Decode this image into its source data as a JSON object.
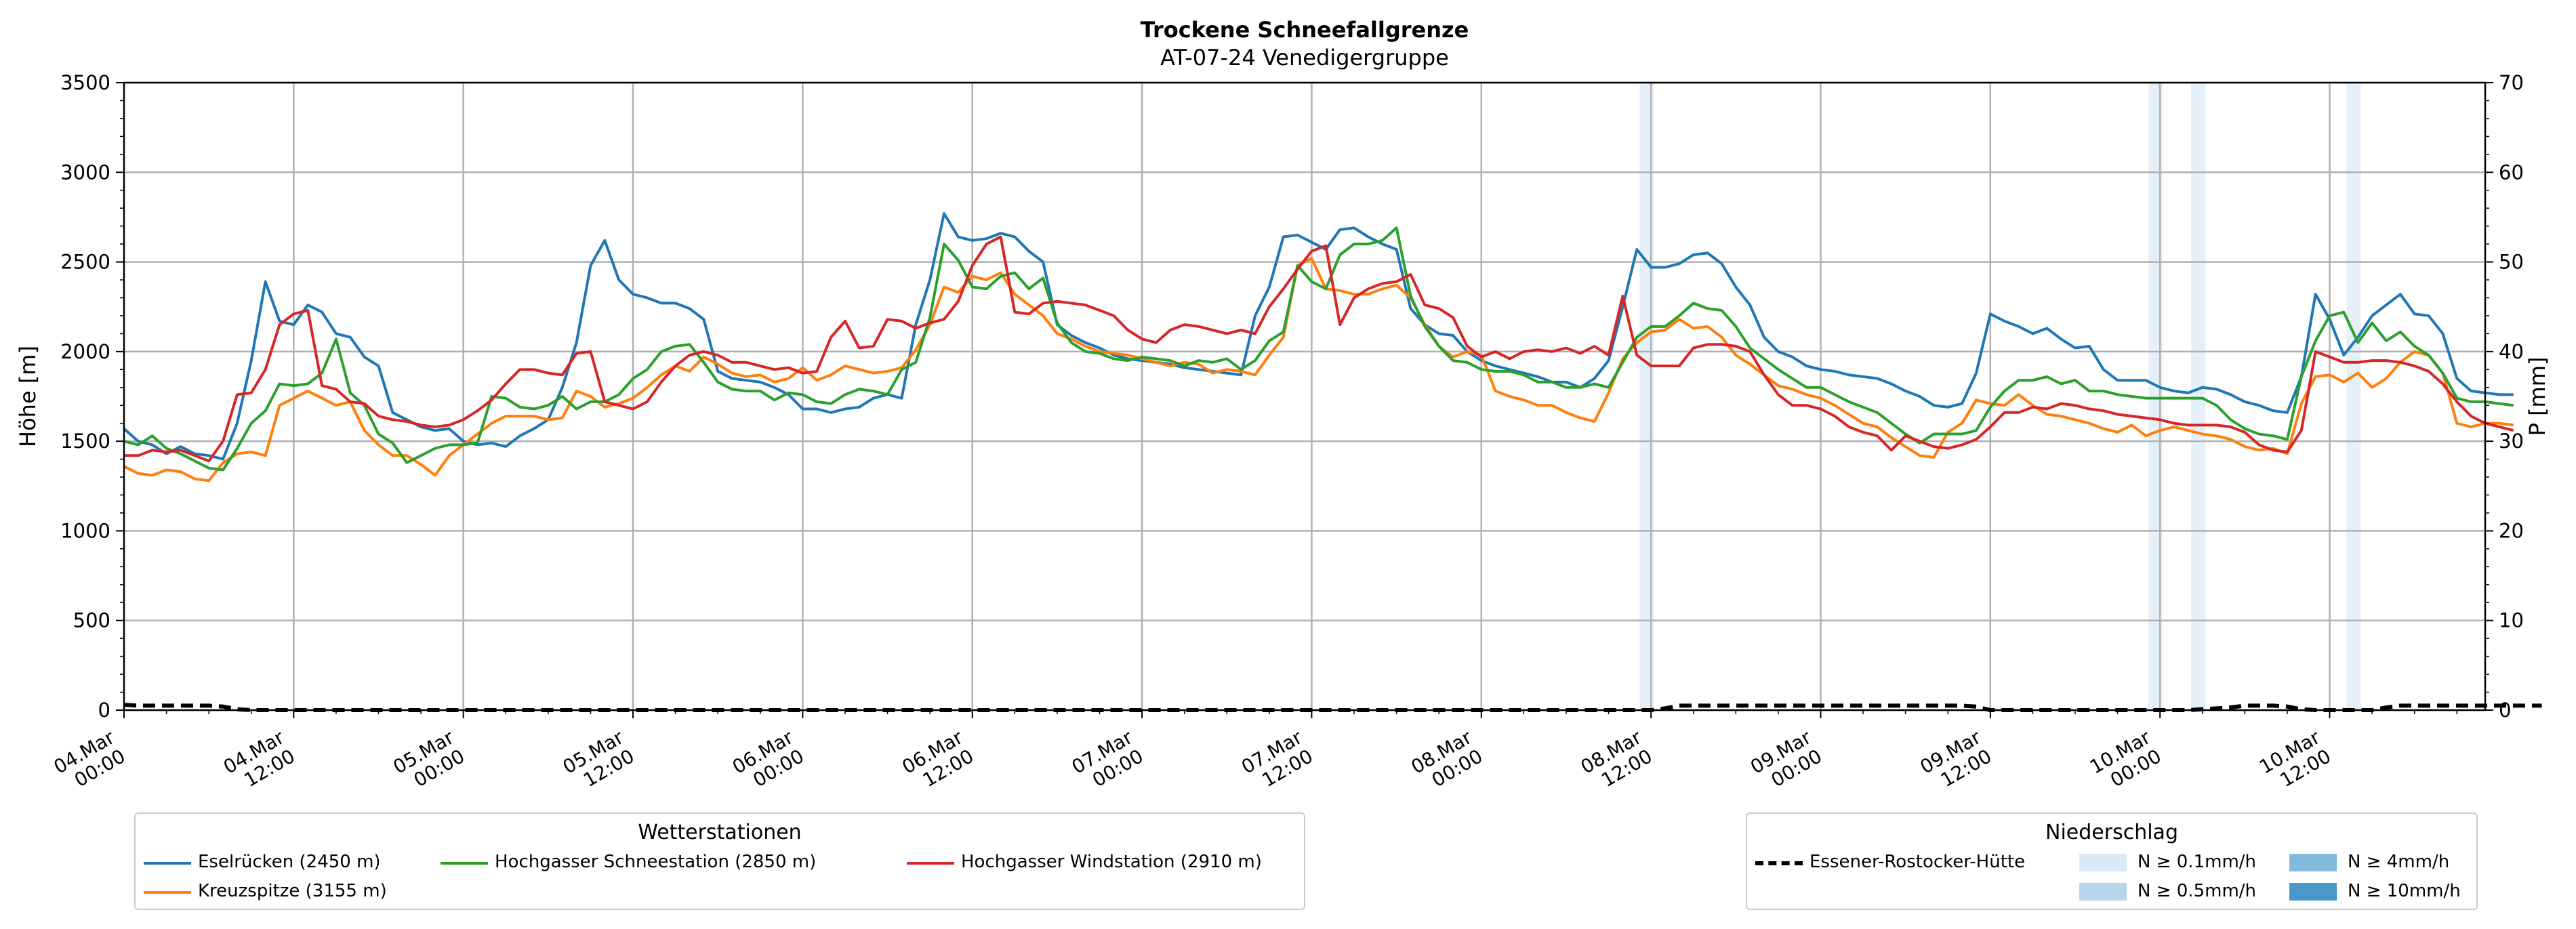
{
  "chart_data": {
    "type": "line",
    "title": "Trockene Schneefallgrenze",
    "subtitle": "AT-07-24 Venedigergruppe",
    "ylabel": "Höhe [m]",
    "ylabel_right": "P [mm]",
    "ylim": [
      0,
      3500
    ],
    "ylim_right": [
      0,
      70
    ],
    "yticks": [
      "0",
      "500",
      "1000",
      "1500",
      "2000",
      "2500",
      "3000",
      "3500"
    ],
    "yticks_right": [
      "0",
      "10",
      "20",
      "30",
      "40",
      "50",
      "60",
      "70"
    ],
    "xticks": [
      [
        "04.Mar",
        "00:00"
      ],
      [
        "04.Mar",
        "12:00"
      ],
      [
        "05.Mar",
        "00:00"
      ],
      [
        "05.Mar",
        "12:00"
      ],
      [
        "06.Mar",
        "00:00"
      ],
      [
        "06.Mar",
        "12:00"
      ],
      [
        "07.Mar",
        "00:00"
      ],
      [
        "07.Mar",
        "12:00"
      ],
      [
        "08.Mar",
        "00:00"
      ],
      [
        "08.Mar",
        "12:00"
      ],
      [
        "09.Mar",
        "00:00"
      ],
      [
        "09.Mar",
        "12:00"
      ],
      [
        "10.Mar",
        "00:00"
      ],
      [
        "10.Mar",
        "12:00"
      ]
    ],
    "x_hours_range": [
      0,
      167
    ],
    "grid": true,
    "series": [
      {
        "name": "Eselrücken (2450 m)",
        "color": "#1f77b4",
        "values": [
          1570,
          1500,
          1480,
          1430,
          1470,
          1430,
          1420,
          1400,
          1600,
          1950,
          2390,
          2170,
          2150,
          2260,
          2220,
          2100,
          2080,
          1970,
          1920,
          1660,
          1620,
          1580,
          1560,
          1570,
          1500,
          1480,
          1490,
          1470,
          1530,
          1570,
          1620,
          1800,
          2050,
          2480,
          2620,
          2400,
          2320,
          2300,
          2270,
          2270,
          2240,
          2180,
          1890,
          1850,
          1840,
          1830,
          1800,
          1760,
          1680,
          1680,
          1660,
          1680,
          1690,
          1740,
          1760,
          1740,
          2150,
          2400,
          2770,
          2640,
          2620,
          2630,
          2660,
          2640,
          2560,
          2500,
          2150,
          2090,
          2050,
          2020,
          1980,
          1960,
          1950,
          1940,
          1930,
          1910,
          1900,
          1890,
          1880,
          1870,
          2200,
          2360,
          2640,
          2650,
          2610,
          2570,
          2680,
          2690,
          2640,
          2600,
          2570,
          2240,
          2150,
          2100,
          2090,
          2000,
          1950,
          1920,
          1900,
          1880,
          1860,
          1830,
          1830,
          1800,
          1850,
          1950,
          2250,
          2570,
          2470,
          2470,
          2490,
          2540,
          2550,
          2490,
          2360,
          2260,
          2080,
          2000,
          1970,
          1920,
          1900,
          1890,
          1870,
          1860,
          1850,
          1820,
          1780,
          1750,
          1700,
          1690,
          1710,
          1880,
          2210,
          2170,
          2140,
          2100,
          2130,
          2070,
          2020,
          2030,
          1900,
          1840,
          1840,
          1840,
          1800,
          1780,
          1770,
          1800,
          1790,
          1760,
          1720,
          1700,
          1670,
          1660,
          1860,
          2320,
          2180,
          1980,
          2080,
          2200,
          2260,
          2320,
          2210,
          2200,
          2100,
          1850,
          1780,
          1770,
          1760,
          1760
        ]
      },
      {
        "name": "Kreuzspitze (3155 m)",
        "color": "#ff7f0e",
        "values": [
          1360,
          1320,
          1310,
          1340,
          1330,
          1290,
          1280,
          1380,
          1430,
          1440,
          1420,
          1700,
          1740,
          1780,
          1740,
          1700,
          1720,
          1560,
          1480,
          1420,
          1420,
          1370,
          1310,
          1420,
          1480,
          1540,
          1600,
          1640,
          1640,
          1640,
          1620,
          1630,
          1780,
          1750,
          1690,
          1710,
          1740,
          1800,
          1870,
          1920,
          1890,
          1970,
          1930,
          1880,
          1860,
          1870,
          1830,
          1850,
          1910,
          1840,
          1870,
          1920,
          1900,
          1880,
          1890,
          1910,
          2010,
          2150,
          2360,
          2330,
          2420,
          2400,
          2440,
          2320,
          2260,
          2200,
          2100,
          2070,
          2030,
          2000,
          1990,
          1980,
          1960,
          1940,
          1920,
          1940,
          1930,
          1880,
          1900,
          1890,
          1870,
          1980,
          2080,
          2480,
          2520,
          2350,
          2340,
          2320,
          2320,
          2350,
          2370,
          2300,
          2150,
          2030,
          1970,
          2000,
          1980,
          1780,
          1750,
          1730,
          1700,
          1700,
          1660,
          1630,
          1610,
          1770,
          1960,
          2050,
          2110,
          2120,
          2180,
          2130,
          2140,
          2080,
          1980,
          1930,
          1870,
          1810,
          1790,
          1760,
          1740,
          1700,
          1650,
          1600,
          1580,
          1520,
          1470,
          1420,
          1410,
          1550,
          1600,
          1730,
          1710,
          1700,
          1760,
          1700,
          1650,
          1640,
          1620,
          1600,
          1570,
          1550,
          1590,
          1530,
          1560,
          1580,
          1560,
          1540,
          1530,
          1510,
          1470,
          1450,
          1460,
          1430,
          1710,
          1860,
          1870,
          1830,
          1880,
          1800,
          1850,
          1940,
          2000,
          1980,
          1880,
          1600,
          1580,
          1600,
          1600,
          1590
        ]
      },
      {
        "name": "Hochgasser Schneestation (2850 m)",
        "color": "#2ca02c",
        "values": [
          1500,
          1480,
          1530,
          1460,
          1430,
          1390,
          1350,
          1340,
          1460,
          1600,
          1670,
          1820,
          1810,
          1820,
          1880,
          2070,
          1770,
          1700,
          1540,
          1490,
          1380,
          1420,
          1460,
          1480,
          1480,
          1490,
          1750,
          1740,
          1690,
          1680,
          1700,
          1750,
          1680,
          1720,
          1720,
          1760,
          1850,
          1900,
          2000,
          2030,
          2040,
          1940,
          1830,
          1790,
          1780,
          1780,
          1730,
          1770,
          1760,
          1720,
          1710,
          1760,
          1790,
          1780,
          1760,
          1900,
          1940,
          2190,
          2600,
          2510,
          2360,
          2350,
          2420,
          2440,
          2350,
          2410,
          2160,
          2050,
          2000,
          1990,
          1960,
          1950,
          1970,
          1960,
          1950,
          1920,
          1950,
          1940,
          1960,
          1900,
          1950,
          2060,
          2110,
          2480,
          2390,
          2350,
          2540,
          2600,
          2600,
          2620,
          2690,
          2310,
          2140,
          2030,
          1950,
          1940,
          1900,
          1890,
          1890,
          1870,
          1830,
          1830,
          1800,
          1800,
          1820,
          1800,
          1940,
          2080,
          2140,
          2140,
          2200,
          2270,
          2240,
          2230,
          2140,
          2020,
          1960,
          1900,
          1850,
          1800,
          1800,
          1760,
          1720,
          1690,
          1660,
          1600,
          1540,
          1490,
          1540,
          1540,
          1540,
          1560,
          1690,
          1780,
          1840,
          1840,
          1860,
          1820,
          1840,
          1780,
          1780,
          1760,
          1750,
          1740,
          1740,
          1740,
          1740,
          1740,
          1700,
          1620,
          1570,
          1540,
          1530,
          1510,
          1860,
          2060,
          2200,
          2220,
          2050,
          2160,
          2060,
          2110,
          2030,
          1980,
          1880,
          1740,
          1720,
          1720,
          1710,
          1700
        ]
      },
      {
        "name": "Hochgasser Windstation (2910 m)",
        "color": "#d62728",
        "values": [
          1420,
          1420,
          1450,
          1440,
          1450,
          1420,
          1390,
          1500,
          1760,
          1770,
          1900,
          2150,
          2210,
          2230,
          1810,
          1790,
          1720,
          1710,
          1640,
          1620,
          1610,
          1590,
          1580,
          1590,
          1620,
          1670,
          1730,
          1820,
          1900,
          1900,
          1880,
          1870,
          1990,
          2000,
          1720,
          1700,
          1680,
          1720,
          1830,
          1920,
          1980,
          2000,
          1980,
          1940,
          1940,
          1920,
          1900,
          1910,
          1880,
          1890,
          2080,
          2170,
          2020,
          2030,
          2180,
          2170,
          2130,
          2160,
          2180,
          2280,
          2480,
          2600,
          2640,
          2220,
          2210,
          2270,
          2280,
          2270,
          2260,
          2230,
          2200,
          2120,
          2070,
          2050,
          2120,
          2150,
          2140,
          2120,
          2100,
          2120,
          2100,
          2250,
          2350,
          2460,
          2560,
          2590,
          2150,
          2300,
          2350,
          2380,
          2390,
          2430,
          2260,
          2240,
          2190,
          2030,
          1970,
          2000,
          1960,
          2000,
          2010,
          2000,
          2020,
          1990,
          2030,
          1980,
          2310,
          1980,
          1920,
          1920,
          1920,
          2020,
          2040,
          2040,
          2030,
          2000,
          1870,
          1760,
          1700,
          1700,
          1680,
          1640,
          1580,
          1550,
          1530,
          1450,
          1530,
          1500,
          1470,
          1460,
          1480,
          1510,
          1580,
          1660,
          1660,
          1690,
          1680,
          1710,
          1700,
          1680,
          1670,
          1650,
          1640,
          1630,
          1620,
          1600,
          1590,
          1590,
          1590,
          1580,
          1550,
          1480,
          1450,
          1440,
          1560,
          2000,
          1970,
          1940,
          1940,
          1950,
          1950,
          1940,
          1920,
          1890,
          1820,
          1720,
          1640,
          1600,
          1580,
          1560
        ]
      }
    ],
    "precip_series": {
      "name": "Essener-Rostocker-Hütte",
      "color": "#000000",
      "values": [
        0.6,
        0.5,
        0.5,
        0.5,
        0.5,
        0.5,
        0.5,
        0.4,
        0.1,
        0.0,
        0.0,
        0.0,
        0.0,
        0.0,
        0.0,
        0.0,
        0.0,
        0.0,
        0.0,
        0.0,
        0.0,
        0.0,
        0.0,
        0.0,
        0.0,
        0.0,
        0.0,
        0.0,
        0.0,
        0.0,
        0.0,
        0.0,
        0.0,
        0.0,
        0.0,
        0.0,
        0.0,
        0.0,
        0.0,
        0.0,
        0.0,
        0.0,
        0.0,
        0.0,
        0.0,
        0.0,
        0.0,
        0.0,
        0.0,
        0.0,
        0.0,
        0.0,
        0.0,
        0.0,
        0.0,
        0.0,
        0.0,
        0.0,
        0.0,
        0.0,
        0.0,
        0.0,
        0.0,
        0.0,
        0.0,
        0.0,
        0.0,
        0.0,
        0.0,
        0.0,
        0.0,
        0.0,
        0.0,
        0.0,
        0.0,
        0.0,
        0.0,
        0.0,
        0.0,
        0.0,
        0.0,
        0.0,
        0.0,
        0.0,
        0.0,
        0.0,
        0.0,
        0.0,
        0.0,
        0.0,
        0.0,
        0.0,
        0.0,
        0.0,
        0.0,
        0.0,
        0.0,
        0.0,
        0.0,
        0.0,
        0.0,
        0.0,
        0.0,
        0.0,
        0.0,
        0.0,
        0.0,
        0.0,
        0.0,
        0.2,
        0.5,
        0.5,
        0.5,
        0.5,
        0.5,
        0.5,
        0.5,
        0.5,
        0.5,
        0.5,
        0.5,
        0.5,
        0.5,
        0.5,
        0.5,
        0.5,
        0.5,
        0.5,
        0.5,
        0.5,
        0.5,
        0.4,
        0.0,
        0.0,
        0.0,
        0.0,
        0.0,
        0.0,
        0.0,
        0.0,
        0.0,
        0.0,
        0.0,
        0.0,
        0.0,
        0.0,
        0.0,
        0.1,
        0.2,
        0.3,
        0.5,
        0.5,
        0.5,
        0.4,
        0.1,
        0.0,
        0.0,
        0.0,
        0.0,
        0.0,
        0.3,
        0.5,
        0.5,
        0.5,
        0.5,
        0.5,
        0.5,
        0.5,
        0.5,
        0.5,
        0.5,
        0.5
      ]
    },
    "precip_bands": [
      {
        "start_h": 107.2,
        "end_h": 108.2,
        "class": "N ≥ 0.1mm/h"
      },
      {
        "start_h": 143.2,
        "end_h": 144.2,
        "class": "N ≥ 0.1mm/h"
      },
      {
        "start_h": 146.2,
        "end_h": 147.2,
        "class": "N ≥ 0.1mm/h"
      },
      {
        "start_h": 157.2,
        "end_h": 158.2,
        "class": "N ≥ 0.1mm/h"
      }
    ],
    "legend_stations": {
      "title": "Wetterstationen",
      "items": [
        "Eselrücken (2450 m)",
        "Kreuzspitze (3155 m)",
        "Hochgasser Schneestation (2850 m)",
        "Hochgasser Windstation (2910 m)"
      ]
    },
    "legend_precip": {
      "title": "Niederschlag",
      "line_label": "Essener-Rostocker-Hütte",
      "classes": [
        {
          "label": "N ≥ 0.1mm/h",
          "color": "#dbe9f6"
        },
        {
          "label": "N ≥ 0.5mm/h",
          "color": "#b9d5ea"
        },
        {
          "label": "N ≥ 4mm/h",
          "color": "#82badb"
        },
        {
          "label": "N ≥ 10mm/h",
          "color": "#4a98c9"
        }
      ]
    }
  }
}
